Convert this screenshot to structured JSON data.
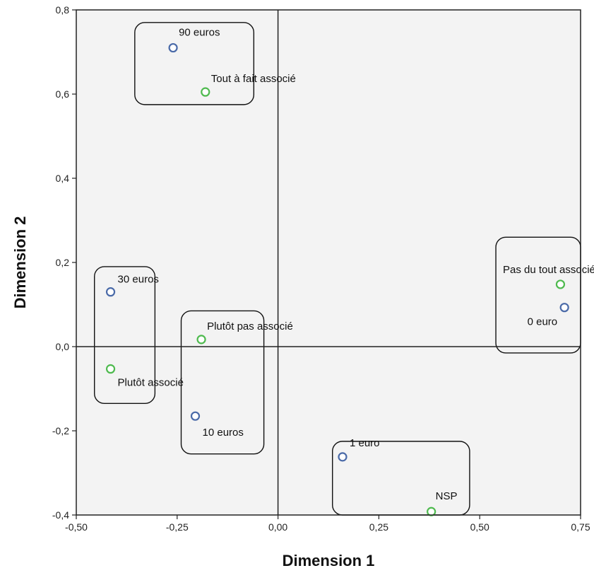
{
  "chart_data": {
    "type": "scatter",
    "xlabel": "Dimension 1",
    "ylabel": "Dimension 2",
    "xlim": [
      -0.5,
      0.75
    ],
    "ylim": [
      -0.4,
      0.8
    ],
    "xticks": [
      {
        "value": -0.5,
        "label": "-0,50"
      },
      {
        "value": -0.25,
        "label": "-0,25"
      },
      {
        "value": 0.0,
        "label": "0,00"
      },
      {
        "value": 0.25,
        "label": "0,25"
      },
      {
        "value": 0.5,
        "label": "0,50"
      },
      {
        "value": 0.75,
        "label": "0,75"
      }
    ],
    "yticks": [
      {
        "value": -0.4,
        "label": "-0,4"
      },
      {
        "value": -0.2,
        "label": "-0,2"
      },
      {
        "value": 0.0,
        "label": "0,0"
      },
      {
        "value": 0.2,
        "label": "0,2"
      },
      {
        "value": 0.4,
        "label": "0,4"
      },
      {
        "value": 0.6,
        "label": "0,6"
      },
      {
        "value": 0.8,
        "label": "0,8"
      }
    ],
    "grid": false,
    "reference_lines": {
      "x": 0.0,
      "y": 0.0
    },
    "colors": {
      "blue": "#4a6aa8",
      "green": "#4fba4f",
      "frame": "#222222",
      "background": "#f3f3f3"
    },
    "series": [
      {
        "color_key": "blue",
        "points": [
          {
            "x": -0.26,
            "y": 0.71,
            "label": "90 euros"
          },
          {
            "x": -0.415,
            "y": 0.13,
            "label": "30 euros"
          },
          {
            "x": -0.205,
            "y": -0.165,
            "label": "10 euros"
          },
          {
            "x": 0.16,
            "y": -0.262,
            "label": "1 euro"
          },
          {
            "x": 0.71,
            "y": 0.093,
            "label": "0 euro"
          }
        ]
      },
      {
        "color_key": "green",
        "points": [
          {
            "x": -0.18,
            "y": 0.605,
            "label": "Tout à fait associé"
          },
          {
            "x": -0.415,
            "y": -0.053,
            "label": "Plutôt associé"
          },
          {
            "x": -0.19,
            "y": 0.017,
            "label": "Plutôt pas associé"
          },
          {
            "x": 0.38,
            "y": -0.392,
            "label": "NSP"
          },
          {
            "x": 0.7,
            "y": 0.148,
            "label": "Pas du tout associé"
          }
        ]
      }
    ],
    "groups": [
      {
        "x0": -0.355,
        "x1": -0.06,
        "y0": 0.575,
        "y1": 0.77
      },
      {
        "x0": -0.455,
        "x1": -0.305,
        "y0": -0.135,
        "y1": 0.19
      },
      {
        "x0": -0.24,
        "x1": -0.035,
        "y0": -0.255,
        "y1": 0.085
      },
      {
        "x0": 0.135,
        "x1": 0.475,
        "y0": -0.4,
        "y1": -0.225
      },
      {
        "x0": 0.54,
        "x1": 0.75,
        "y0": -0.015,
        "y1": 0.26
      }
    ]
  }
}
